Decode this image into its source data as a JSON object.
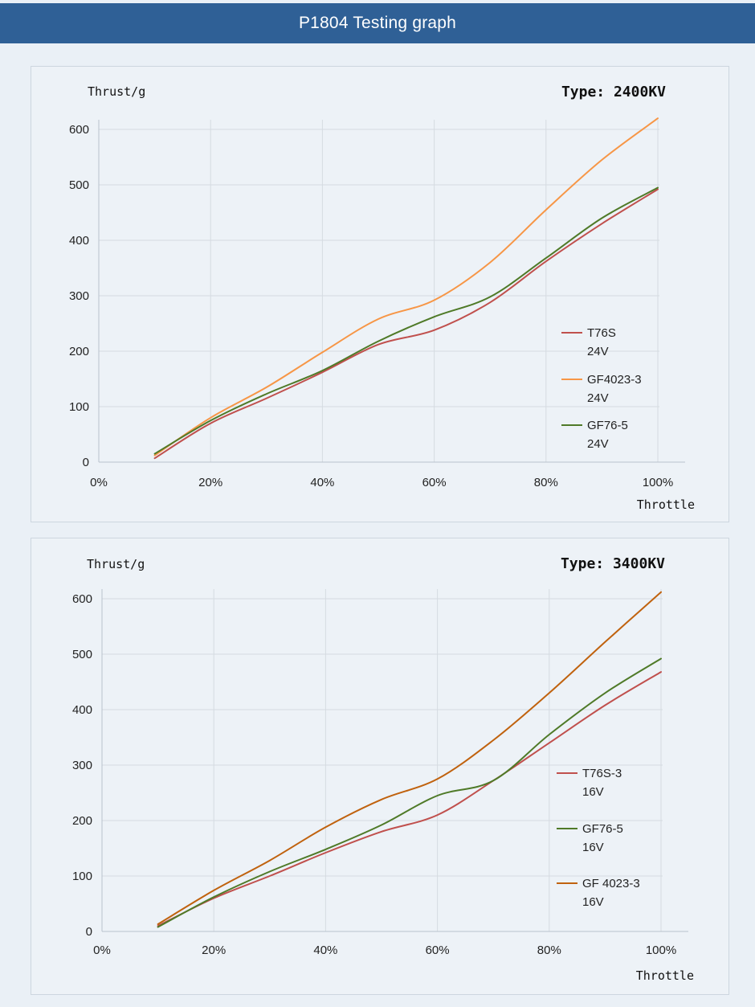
{
  "header": {
    "title": "P1804 Testing graph"
  },
  "chart_data": [
    {
      "type": "line",
      "title": "Type: 2400KV",
      "ylabel": "Thrust/g",
      "xlabel": "Throttle",
      "x_ticks": [
        "0%",
        "20%",
        "40%",
        "60%",
        "80%",
        "100%"
      ],
      "y_ticks": [
        "0",
        "100",
        "200",
        "300",
        "400",
        "500",
        "600"
      ],
      "xlim": [
        0,
        100
      ],
      "ylim": [
        0,
        600
      ],
      "grid": true,
      "legend_position": "right",
      "x": [
        10,
        20,
        30,
        40,
        50,
        60,
        70,
        80,
        90,
        100
      ],
      "series": [
        {
          "name": "T76S",
          "name_line2": "24V",
          "color": "#c0504d",
          "values": [
            7,
            70,
            115,
            162,
            212,
            238,
            288,
            362,
            430,
            492
          ]
        },
        {
          "name": "GF4023-3",
          "name_line2": "24V",
          "color": "#f79646",
          "values": [
            12,
            80,
            135,
            198,
            258,
            292,
            360,
            455,
            545,
            620
          ]
        },
        {
          "name": "GF76-5",
          "name_line2": "24V",
          "color": "#4f7a28",
          "values": [
            15,
            75,
            123,
            165,
            218,
            262,
            298,
            368,
            440,
            495
          ]
        }
      ]
    },
    {
      "type": "line",
      "title": "Type: 3400KV",
      "ylabel": "Thrust/g",
      "xlabel": "Throttle",
      "x_ticks": [
        "0%",
        "20%",
        "40%",
        "60%",
        "80%",
        "100%"
      ],
      "y_ticks": [
        "0",
        "100",
        "200",
        "300",
        "400",
        "500",
        "600"
      ],
      "xlim": [
        0,
        100
      ],
      "ylim": [
        0,
        600
      ],
      "grid": true,
      "legend_position": "right",
      "x": [
        10,
        20,
        30,
        40,
        50,
        60,
        70,
        80,
        90,
        100
      ],
      "series": [
        {
          "name": "T76S-3",
          "name_line2": "16V",
          "color": "#c0504d",
          "values": [
            10,
            60,
            100,
            142,
            180,
            210,
            272,
            340,
            408,
            468
          ]
        },
        {
          "name": "GF76-5",
          "name_line2": "16V",
          "color": "#4f7a28",
          "values": [
            8,
            62,
            108,
            148,
            192,
            245,
            272,
            355,
            430,
            492
          ]
        },
        {
          "name": "GF 4023-3",
          "name_line2": "16V",
          "color": "#c0620e",
          "values": [
            13,
            74,
            128,
            188,
            238,
            275,
            345,
            430,
            522,
            612
          ]
        }
      ]
    }
  ]
}
